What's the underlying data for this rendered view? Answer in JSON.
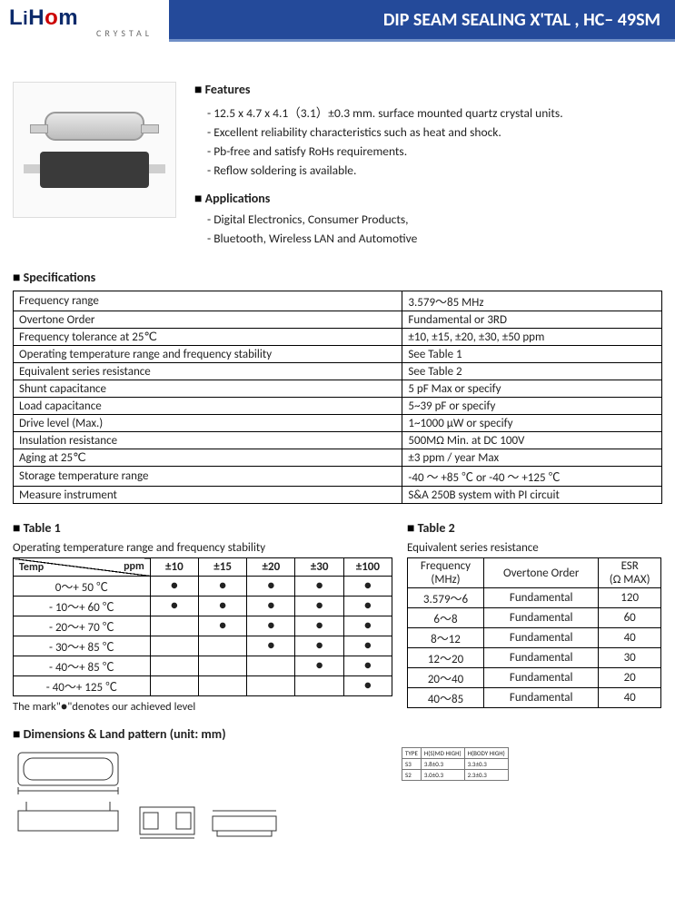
{
  "header": {
    "logo_main": "LiHom",
    "logo_sub": "CRYSTAL",
    "title": "DIP SEAM SEALING X'TAL , HC– 49SM",
    "title_bg": "#244a9a",
    "title_underline": "#6f8fc7",
    "logo_color": "#0b2a6b"
  },
  "features": {
    "heading": "Features",
    "items": [
      "12.5 x 4.7 x 4.1（3.1）±0.3 mm. surface mounted quartz crystal units.",
      "Excellent reliability characteristics such as heat and shock.",
      "Pb-free and satisfy RoHs requirements.",
      "Reflow soldering is available."
    ]
  },
  "applications": {
    "heading": "Applications",
    "items": [
      "Digital Electronics, Consumer Products,",
      "Bluetooth,  Wireless LAN and Automotive"
    ]
  },
  "specifications": {
    "heading": "Specifications",
    "rows": [
      [
        "Frequency range",
        "3.579～85 MHz"
      ],
      [
        "Overtone Order",
        "Fundamental   or 3RD"
      ],
      [
        "Frequency tolerance at 25℃",
        "±10, ±15, ±20, ±30, ±50 ppm"
      ],
      [
        "Operating temperature range and frequency stability",
        "See Table 1"
      ],
      [
        "Equivalent series resistance",
        "See Table 2"
      ],
      [
        "Shunt capacitance",
        "5 pF Max or specify"
      ],
      [
        "Load capacitance",
        "5~39 pF or specify"
      ],
      [
        "Drive level (Max.)",
        "1~1000 μW or specify"
      ],
      [
        "Insulation resistance",
        "500MΩ Min. at DC 100V"
      ],
      [
        "Aging at 25℃",
        "±3 ppm / year Max"
      ],
      [
        "Storage temperature range",
        "-40 ～ +85 ℃ or -40 ～ +125 ℃"
      ],
      [
        "Measure instrument",
        "S&A 250B system with PI circuit"
      ]
    ]
  },
  "table1": {
    "heading": "Table 1",
    "caption": "Operating temperature range and frequency stability",
    "diag_top": "ppm",
    "diag_left": "Temp",
    "cols": [
      "±10",
      "±15",
      "±20",
      "±30",
      "±100"
    ],
    "rows": [
      {
        "label": "0～+ 50 ℃",
        "dots": [
          1,
          1,
          1,
          1,
          1
        ]
      },
      {
        "label": "- 10～+ 60 ℃",
        "dots": [
          1,
          1,
          1,
          1,
          1
        ]
      },
      {
        "label": "- 20～+ 70 ℃",
        "dots": [
          0,
          1,
          1,
          1,
          1
        ]
      },
      {
        "label": "- 30～+ 85 ℃",
        "dots": [
          0,
          0,
          1,
          1,
          1
        ]
      },
      {
        "label": "- 40～+ 85 ℃",
        "dots": [
          0,
          0,
          0,
          1,
          1
        ]
      },
      {
        "label": "- 40～+ 125 ℃",
        "dots": [
          0,
          0,
          0,
          0,
          1
        ]
      }
    ],
    "note": "The mark\"●\"denotes our achieved level"
  },
  "table2": {
    "heading": "Table 2",
    "caption": "Equivalent series resistance",
    "headers": [
      "Frequency (MHz)",
      "Overtone Order",
      "ESR (Ω MAX)"
    ],
    "rows": [
      [
        "3.579～6",
        "Fundamental",
        "120"
      ],
      [
        "6～8",
        "Fundamental",
        "60"
      ],
      [
        "8～12",
        "Fundamental",
        "40"
      ],
      [
        "12～20",
        "Fundamental",
        "30"
      ],
      [
        "20～40",
        "Fundamental",
        "20"
      ],
      [
        "40～85",
        "Fundamental",
        "40"
      ]
    ]
  },
  "dimensions": {
    "heading": "Dimensions & Land pattern (unit: mm)",
    "type_table": {
      "headers": [
        "TYPE",
        "H(S)MD HIGH)",
        "H(BODY HIGH)"
      ],
      "rows": [
        [
          "S3",
          "3.8±0.3",
          "3.3±0.3"
        ],
        [
          "S2",
          "3.0±0.3",
          "2.3±0.3"
        ]
      ]
    }
  }
}
